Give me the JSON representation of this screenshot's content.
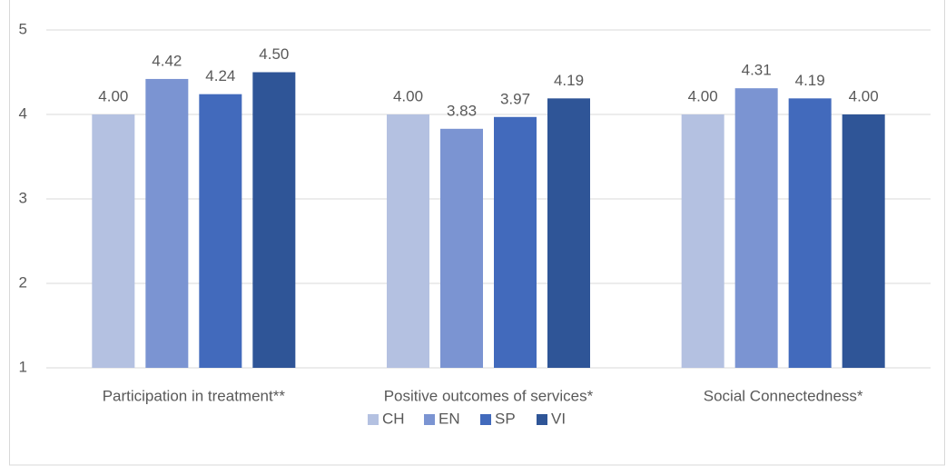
{
  "chart_data": {
    "type": "bar",
    "categories": [
      "Participation in treatment**",
      "Positive outcomes of services*",
      "Social Connectedness*"
    ],
    "series": [
      {
        "name": "CH",
        "color": "#b4c1e1",
        "values": [
          4.0,
          4.0,
          4.0
        ],
        "value_labels": [
          "4.00",
          "4.00",
          "4.00"
        ]
      },
      {
        "name": "EN",
        "color": "#7b94d2",
        "values": [
          4.42,
          3.83,
          4.31
        ],
        "value_labels": [
          "4.42",
          "3.83",
          "4.31"
        ]
      },
      {
        "name": "SP",
        "color": "#426abc",
        "values": [
          4.24,
          3.97,
          4.19
        ],
        "value_labels": [
          "4.24",
          "3.97",
          "4.19"
        ]
      },
      {
        "name": "VI",
        "color": "#2f5597",
        "values": [
          4.5,
          4.19,
          4.0
        ],
        "value_labels": [
          "4.50",
          "4.19",
          "4.00"
        ]
      }
    ],
    "ylim": [
      1,
      5
    ],
    "yticks": [
      1,
      2,
      3,
      4,
      5
    ],
    "grid": true,
    "legend": "bottom"
  }
}
